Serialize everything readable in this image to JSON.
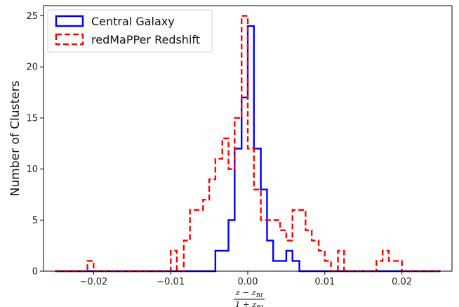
{
  "chart_data": {
    "type": "histogram-step",
    "xlabel_numerator": "z − z",
    "xlabel_numerator_sub": "BI",
    "xlabel_denominator": "1 + z",
    "xlabel_denominator_sub": "BI",
    "ylabel": "Number of Clusters",
    "xlim": [
      -0.0265,
      0.0265
    ],
    "ylim": [
      0,
      26
    ],
    "xticks": [
      -0.02,
      -0.01,
      0.0,
      0.01,
      0.02
    ],
    "xtick_labels": [
      "−0.02",
      "−0.01",
      "0.00",
      "0.01",
      "0.02"
    ],
    "yticks": [
      0,
      5,
      10,
      15,
      20,
      25
    ],
    "ytick_labels": [
      "0",
      "5",
      "10",
      "15",
      "20",
      "25"
    ],
    "legend_position": "top-left",
    "bin_edges": [
      -0.025,
      -0.0242,
      -0.0233,
      -0.0225,
      -0.0217,
      -0.0208,
      -0.02,
      -0.0192,
      -0.0183,
      -0.0175,
      -0.0167,
      -0.0158,
      -0.015,
      -0.0142,
      -0.0133,
      -0.0125,
      -0.0117,
      -0.0108,
      -0.01,
      -0.0092,
      -0.0083,
      -0.0075,
      -0.0067,
      -0.0058,
      -0.005,
      -0.0042,
      -0.0033,
      -0.0025,
      -0.0017,
      -0.0008,
      0.0,
      0.0008,
      0.0017,
      0.0025,
      0.0033,
      0.0042,
      0.005,
      0.0058,
      0.0067,
      0.0075,
      0.0083,
      0.0092,
      0.01,
      0.0108,
      0.0117,
      0.0125,
      0.0133,
      0.0142,
      0.015,
      0.0158,
      0.0167,
      0.0175,
      0.0183,
      0.0192,
      0.02,
      0.0208,
      0.0217,
      0.0225,
      0.0233,
      0.0242,
      0.025
    ],
    "series": [
      {
        "name": "Central Galaxy",
        "color": "#0000ff",
        "style": "solid",
        "counts": [
          0,
          0,
          0,
          0,
          0,
          0,
          0,
          0,
          0,
          0,
          0,
          0,
          0,
          0,
          0,
          0,
          0,
          0,
          0,
          0,
          0,
          0,
          0,
          0,
          0,
          2,
          2,
          5,
          12,
          17,
          24,
          12,
          8,
          3,
          1,
          1,
          2,
          1,
          0,
          0,
          0,
          0,
          0,
          0,
          0,
          0,
          0,
          0,
          0,
          0,
          0,
          0,
          0,
          0,
          0,
          0,
          0,
          0,
          0,
          0
        ]
      },
      {
        "name": "redMaPPer Redshift",
        "color": "#ff0000",
        "style": "dashed",
        "counts": [
          0,
          0,
          0,
          0,
          0,
          1,
          0,
          0,
          0,
          0,
          0,
          0,
          0,
          0,
          0,
          0,
          0,
          0,
          2,
          0,
          3,
          6,
          6,
          7,
          9,
          11,
          13,
          10,
          15,
          25,
          12,
          8,
          5,
          5,
          5,
          4,
          3,
          6,
          6,
          4,
          3,
          2,
          1,
          0,
          2,
          0,
          0,
          0,
          0,
          0,
          1,
          2,
          1,
          1,
          0,
          0,
          0,
          0,
          0,
          0
        ]
      }
    ]
  }
}
